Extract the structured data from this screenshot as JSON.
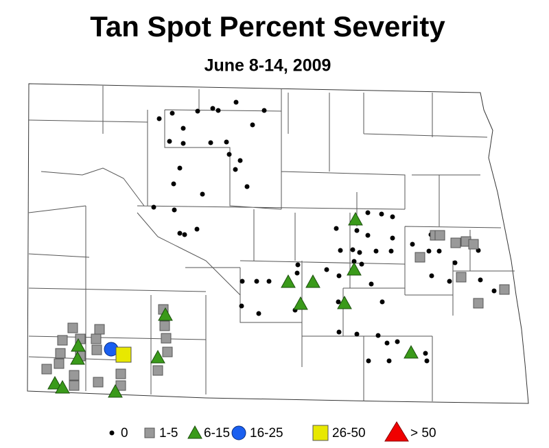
{
  "title": "Tan Spot Percent Severity",
  "subtitle": "June 8-14, 2009",
  "legend": [
    {
      "label": "0"
    },
    {
      "label": "1-5"
    },
    {
      "label": "6-15"
    },
    {
      "label": "16-25"
    },
    {
      "label": "26-50"
    },
    {
      "label": "> 50"
    }
  ]
}
